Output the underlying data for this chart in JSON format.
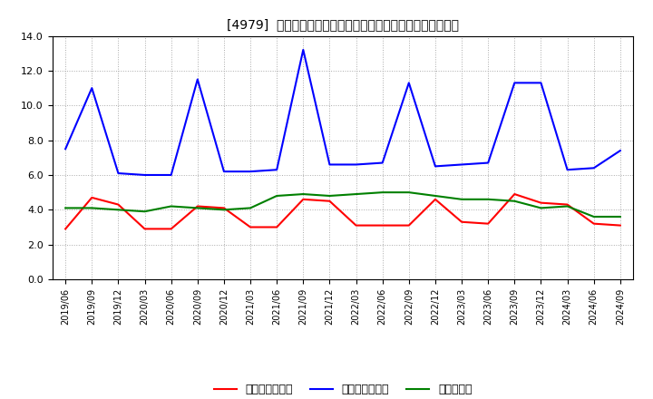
{
  "title": "[4979]  売上債権回転率、買入債務回転率、在庫回転率の推移",
  "x_labels": [
    "2019/06",
    "2019/09",
    "2019/12",
    "2020/03",
    "2020/06",
    "2020/09",
    "2020/12",
    "2021/03",
    "2021/06",
    "2021/09",
    "2021/12",
    "2022/03",
    "2022/06",
    "2022/09",
    "2022/12",
    "2023/03",
    "2023/06",
    "2023/09",
    "2023/12",
    "2024/03",
    "2024/06",
    "2024/09"
  ],
  "sales_turnover": [
    2.9,
    4.7,
    4.3,
    2.9,
    2.9,
    4.2,
    4.1,
    3.0,
    3.0,
    4.6,
    4.5,
    3.1,
    3.1,
    3.1,
    4.6,
    3.3,
    3.2,
    4.9,
    4.4,
    4.3,
    3.2,
    3.1
  ],
  "payable_turnover": [
    7.5,
    11.0,
    6.1,
    6.0,
    6.0,
    11.5,
    6.2,
    6.2,
    6.3,
    13.2,
    6.6,
    6.6,
    6.7,
    11.3,
    6.5,
    6.6,
    6.7,
    11.3,
    11.3,
    6.3,
    6.4,
    7.4
  ],
  "inventory_turnover": [
    4.1,
    4.1,
    4.0,
    3.9,
    4.2,
    4.1,
    4.0,
    4.1,
    4.8,
    4.9,
    4.8,
    4.9,
    5.0,
    5.0,
    4.8,
    4.6,
    4.6,
    4.5,
    4.1,
    4.2,
    3.6,
    3.6
  ],
  "legend_labels": [
    "売上債権回転率",
    "買入債務回転率",
    "在庫回転率"
  ],
  "line_colors": [
    "#ff0000",
    "#0000ff",
    "#008000"
  ],
  "ylim": [
    0.0,
    14.0
  ],
  "yticks": [
    0.0,
    2.0,
    4.0,
    6.0,
    8.0,
    10.0,
    12.0,
    14.0
  ],
  "background_color": "#ffffff",
  "grid_color": "#aaaaaa",
  "spine_color": "#000000"
}
